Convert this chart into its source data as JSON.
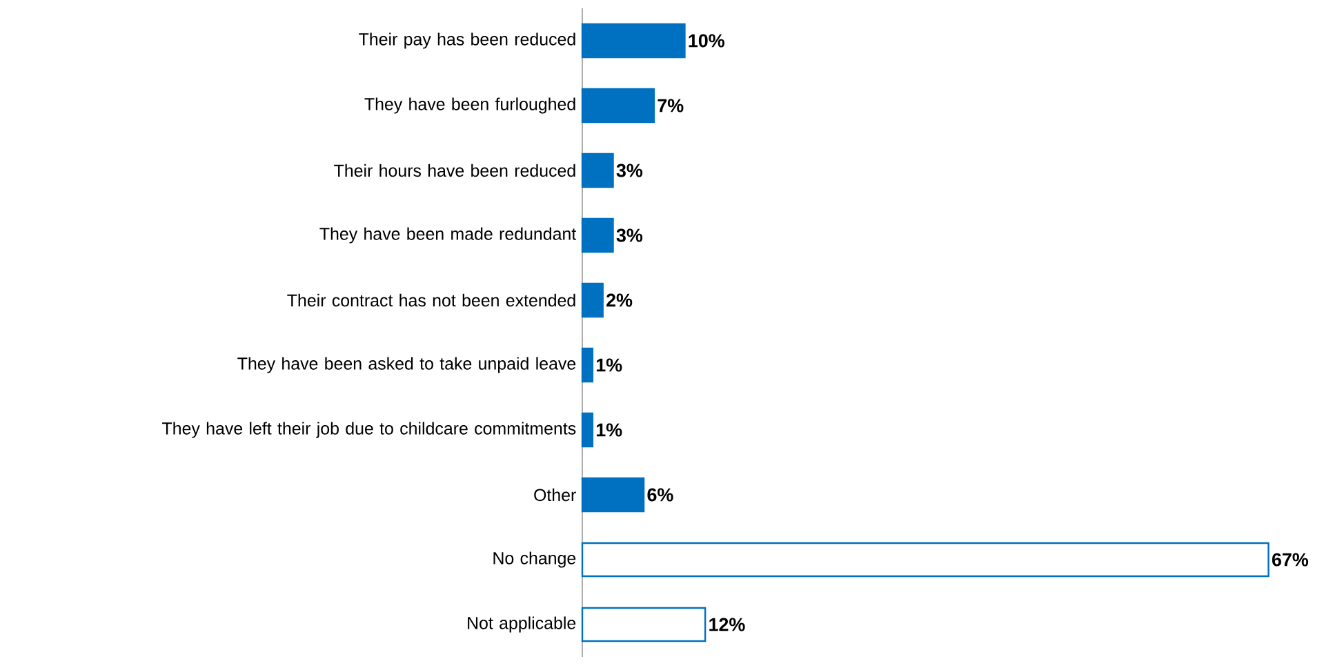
{
  "chart_data": {
    "type": "bar",
    "orientation": "horizontal",
    "categories": [
      "Their pay has been reduced",
      "They have been furloughed",
      "Their hours have been reduced",
      "They have been made redundant",
      "Their contract has not been extended",
      "They have been asked to take unpaid leave",
      "They have left their job due to childcare commitments",
      "Other",
      "No change",
      "Not applicable"
    ],
    "values": [
      10,
      7,
      3,
      3,
      2,
      1,
      1,
      6,
      67,
      12
    ],
    "value_labels": [
      "10%",
      "7%",
      "3%",
      "3%",
      "2%",
      "1%",
      "1%",
      "6%",
      "67%",
      "12%"
    ],
    "colors": [
      "#0070c0",
      "#0070c0",
      "#0070c0",
      "#0070c0",
      "#0070c0",
      "#0070c0",
      "#0070c0",
      "#0070c0",
      "#ffffff",
      "#ffffff"
    ],
    "color": "#0070c0"
  }
}
